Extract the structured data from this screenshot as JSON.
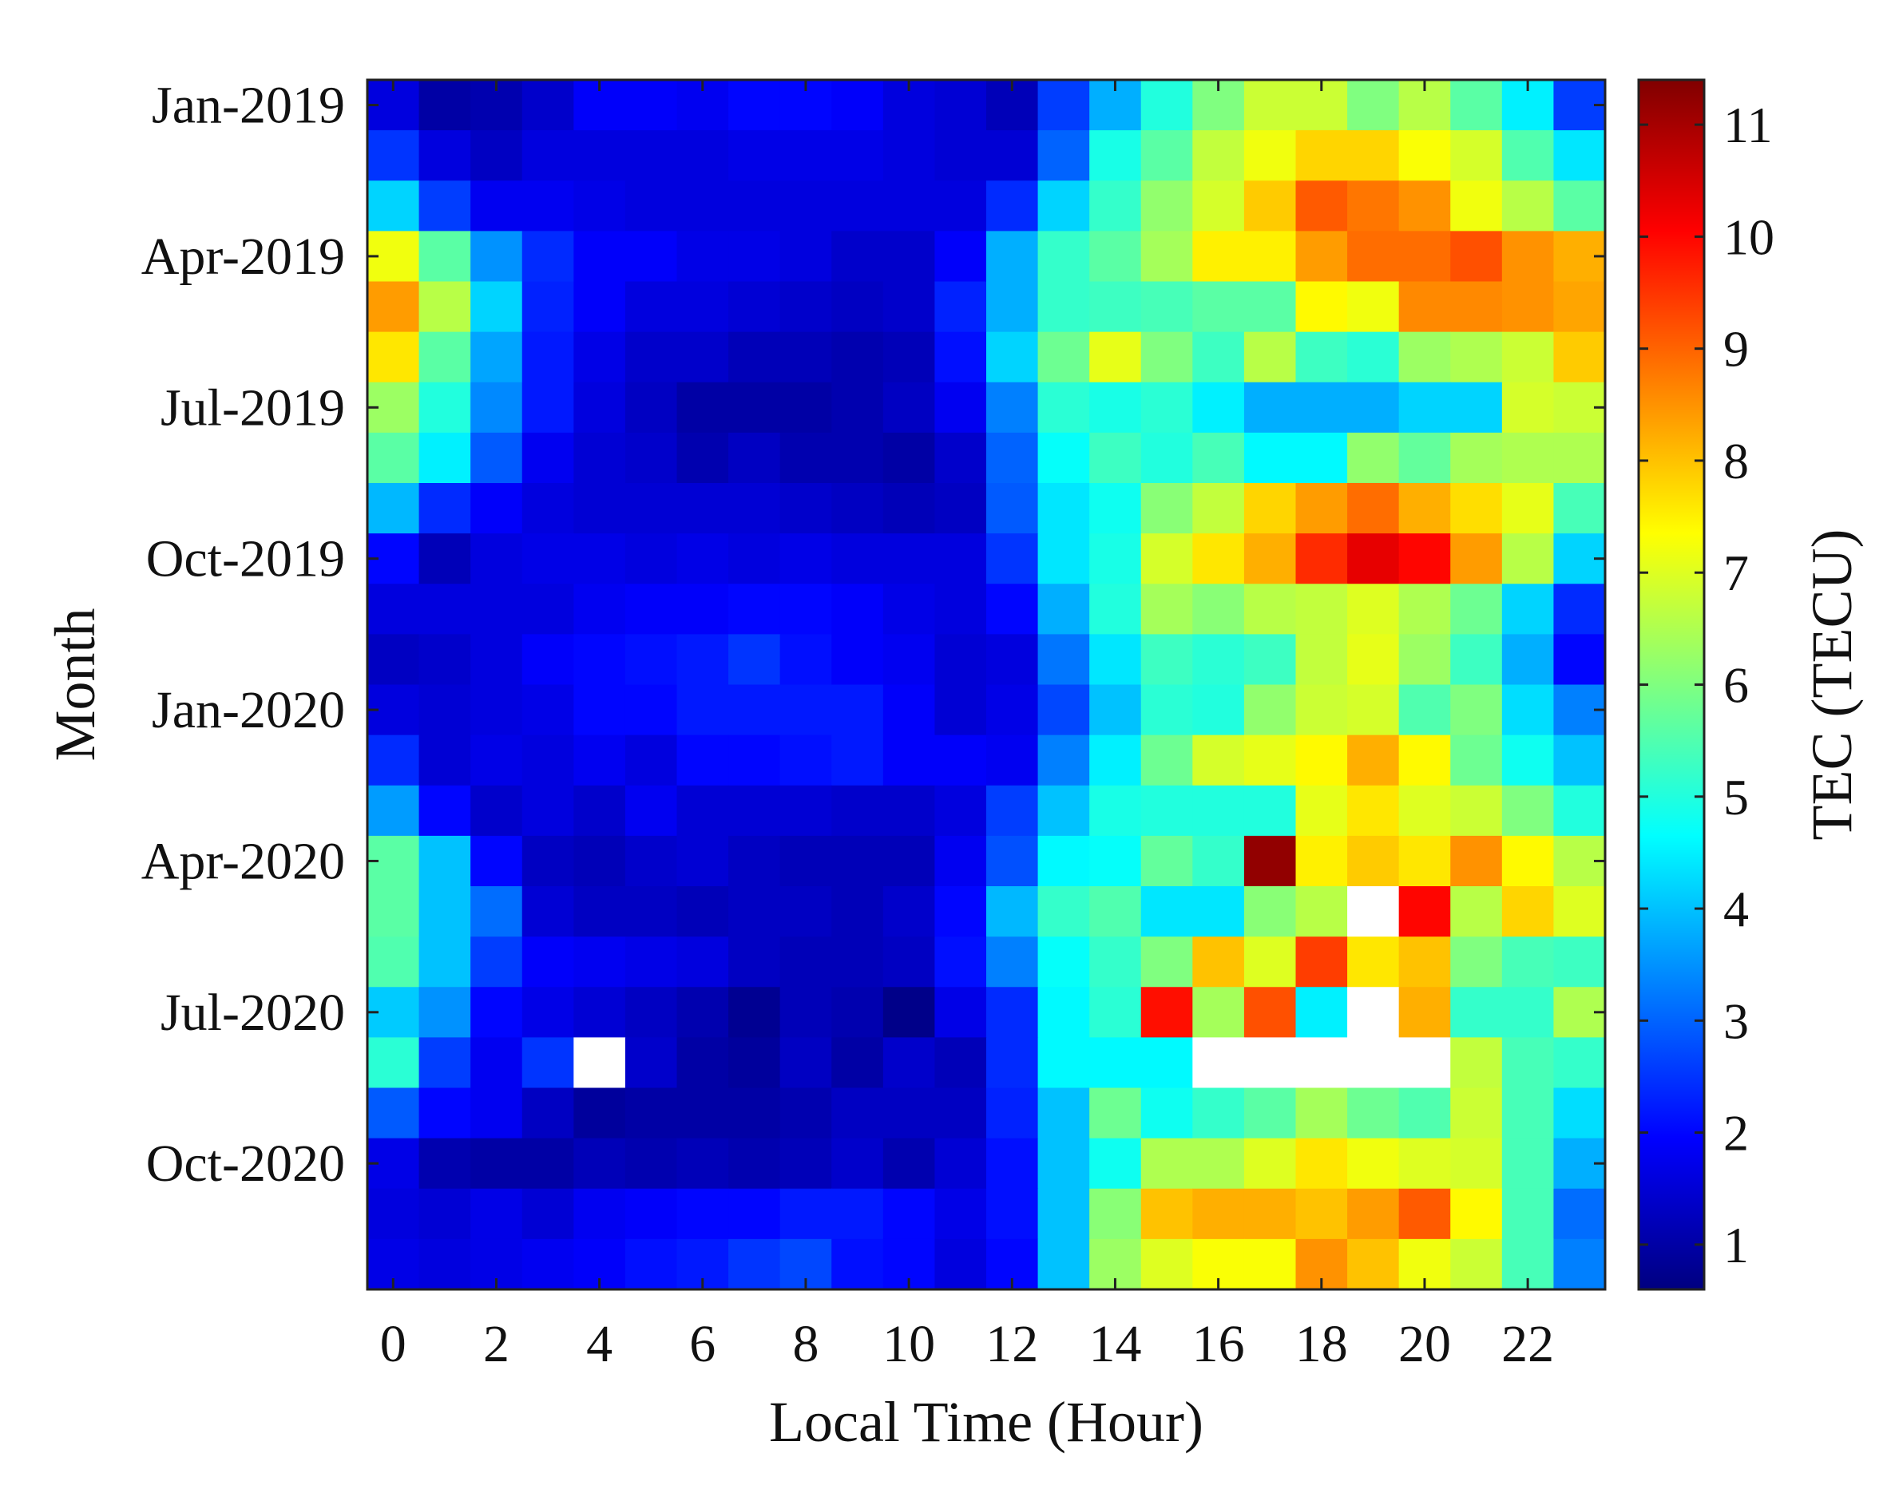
{
  "chart_data": {
    "type": "heatmap",
    "title": "",
    "xlabel": "Local Time (Hour)",
    "ylabel": "Month",
    "colorbar_label": "TEC (TECU)",
    "colormap": "jet",
    "colorbar_range": [
      0.6,
      11.4
    ],
    "colorbar_ticks": [
      "1",
      "2",
      "3",
      "4",
      "5",
      "6",
      "7",
      "8",
      "9",
      "10",
      "11"
    ],
    "x": [
      0,
      1,
      2,
      3,
      4,
      5,
      6,
      7,
      8,
      9,
      10,
      11,
      12,
      13,
      14,
      15,
      16,
      17,
      18,
      19,
      20,
      21,
      22,
      23
    ],
    "x_tick_labels": [
      "0",
      "2",
      "4",
      "6",
      "8",
      "10",
      "12",
      "14",
      "16",
      "18",
      "20",
      "22"
    ],
    "y": [
      "Jan-2019",
      "Feb-2019",
      "Mar-2019",
      "Apr-2019",
      "May-2019",
      "Jun-2019",
      "Jul-2019",
      "Aug-2019",
      "Sep-2019",
      "Oct-2019",
      "Nov-2019",
      "Dec-2019",
      "Jan-2020",
      "Feb-2020",
      "Mar-2020",
      "Apr-2020",
      "May-2020",
      "Jun-2020",
      "Jul-2020",
      "Aug-2020",
      "Sep-2020",
      "Oct-2020",
      "Nov-2020",
      "Dec-2020"
    ],
    "y_tick_labels": [
      "Jan-2019",
      "Apr-2019",
      "Jul-2019",
      "Oct-2019",
      "Jan-2020",
      "Apr-2020",
      "Jul-2020",
      "Oct-2020"
    ],
    "missing_value": null,
    "values": [
      [
        1.6,
        1.0,
        1.1,
        1.4,
        1.9,
        1.9,
        1.8,
        2.0,
        2.0,
        1.9,
        1.6,
        1.5,
        1.2,
        2.6,
        3.8,
        5.0,
        6.0,
        6.8,
        6.8,
        6.0,
        6.6,
        5.6,
        4.5,
        2.6
      ],
      [
        2.5,
        1.6,
        1.3,
        1.6,
        1.6,
        1.6,
        1.6,
        1.7,
        1.7,
        1.7,
        1.6,
        1.5,
        1.5,
        3.0,
        4.9,
        5.6,
        6.7,
        7.2,
        7.8,
        7.8,
        7.3,
        6.9,
        5.5,
        4.4
      ],
      [
        4.2,
        2.6,
        1.8,
        1.8,
        1.7,
        1.6,
        1.6,
        1.6,
        1.6,
        1.6,
        1.6,
        1.6,
        2.4,
        4.2,
        5.2,
        6.2,
        6.9,
        7.9,
        9.1,
        8.8,
        8.5,
        7.2,
        6.6,
        5.6
      ],
      [
        7.2,
        5.6,
        3.5,
        2.4,
        1.9,
        1.9,
        1.7,
        1.7,
        1.6,
        1.4,
        1.4,
        1.9,
        3.8,
        5.2,
        5.6,
        6.4,
        7.5,
        7.5,
        8.4,
        8.9,
        8.9,
        9.2,
        8.5,
        8.2
      ],
      [
        8.4,
        6.6,
        4.2,
        2.3,
        1.9,
        1.6,
        1.6,
        1.5,
        1.4,
        1.3,
        1.4,
        2.3,
        3.8,
        5.2,
        5.3,
        5.4,
        5.6,
        5.6,
        7.4,
        7.2,
        8.6,
        8.6,
        8.5,
        8.3
      ],
      [
        7.6,
        5.6,
        3.7,
        2.2,
        1.7,
        1.4,
        1.4,
        1.2,
        1.2,
        1.1,
        1.2,
        2.1,
        4.2,
        5.8,
        7.1,
        6.0,
        5.3,
        6.6,
        5.3,
        5.1,
        6.3,
        6.5,
        6.8,
        7.9
      ],
      [
        6.3,
        5.0,
        3.4,
        2.2,
        1.6,
        1.3,
        1.0,
        1.0,
        1.0,
        1.1,
        1.3,
        1.8,
        3.3,
        5.1,
        4.9,
        5.1,
        4.5,
        3.8,
        3.8,
        3.8,
        4.2,
        4.2,
        6.9,
        6.8
      ],
      [
        5.6,
        4.5,
        2.9,
        1.8,
        1.5,
        1.4,
        1.1,
        1.3,
        1.1,
        1.1,
        1.0,
        1.4,
        3.0,
        4.7,
        5.3,
        5.0,
        5.4,
        4.6,
        4.6,
        6.2,
        5.7,
        6.4,
        6.5,
        6.5
      ],
      [
        3.9,
        2.4,
        1.9,
        1.6,
        1.5,
        1.5,
        1.5,
        1.5,
        1.4,
        1.3,
        1.2,
        1.3,
        2.9,
        4.4,
        4.8,
        6.1,
        6.7,
        7.8,
        8.4,
        8.9,
        8.2,
        7.7,
        7.1,
        5.4
      ],
      [
        2.0,
        1.2,
        1.6,
        1.7,
        1.7,
        1.6,
        1.7,
        1.6,
        1.7,
        1.6,
        1.6,
        1.6,
        2.5,
        4.4,
        4.9,
        6.9,
        7.6,
        8.2,
        9.6,
        10.3,
        10.0,
        8.4,
        6.6,
        4.2
      ],
      [
        1.6,
        1.6,
        1.6,
        1.6,
        1.8,
        1.9,
        1.9,
        2.0,
        2.0,
        1.9,
        1.7,
        1.6,
        2.0,
        3.8,
        5.0,
        6.4,
        6.1,
        6.6,
        6.7,
        7.0,
        6.5,
        5.8,
        4.2,
        2.4
      ],
      [
        1.3,
        1.4,
        1.6,
        1.9,
        2.0,
        2.1,
        2.2,
        2.5,
        2.1,
        1.9,
        1.8,
        1.5,
        1.6,
        3.2,
        4.4,
        5.3,
        5.1,
        5.3,
        6.7,
        7.1,
        6.3,
        5.3,
        3.8,
        2.0
      ],
      [
        1.6,
        1.5,
        1.6,
        1.7,
        2.0,
        2.0,
        2.2,
        2.2,
        2.2,
        2.2,
        1.9,
        1.5,
        1.7,
        2.7,
        4.0,
        5.1,
        5.0,
        6.2,
        6.8,
        6.9,
        5.5,
        6.0,
        4.3,
        3.3
      ],
      [
        2.4,
        1.5,
        1.7,
        1.6,
        1.8,
        1.6,
        2.0,
        2.0,
        2.1,
        2.2,
        1.9,
        1.9,
        1.8,
        3.3,
        4.5,
        5.8,
        6.9,
        7.1,
        7.4,
        8.2,
        7.4,
        5.8,
        4.8,
        4.0
      ],
      [
        3.6,
        2.0,
        1.4,
        1.6,
        1.4,
        1.8,
        1.5,
        1.5,
        1.5,
        1.4,
        1.4,
        1.6,
        2.6,
        4.0,
        4.9,
        5.0,
        5.0,
        5.0,
        7.1,
        7.6,
        7.0,
        6.8,
        6.0,
        5.0
      ],
      [
        5.6,
        4.0,
        2.0,
        1.3,
        1.2,
        1.4,
        1.5,
        1.3,
        1.2,
        1.2,
        1.2,
        1.8,
        2.8,
        4.6,
        4.7,
        5.7,
        5.2,
        11.2,
        7.5,
        7.9,
        7.6,
        8.5,
        7.4,
        6.6
      ],
      [
        5.6,
        4.0,
        3.1,
        1.5,
        1.3,
        1.3,
        1.2,
        1.3,
        1.3,
        1.2,
        1.4,
        2.0,
        3.9,
        5.2,
        5.5,
        4.4,
        4.4,
        6.1,
        6.6,
        null,
        10.0,
        6.6,
        7.8,
        7.0
      ],
      [
        5.5,
        4.0,
        2.6,
        1.9,
        1.8,
        1.7,
        1.6,
        1.3,
        1.2,
        1.2,
        1.3,
        2.1,
        3.3,
        4.7,
        5.2,
        6.0,
        8.0,
        7.0,
        9.4,
        7.6,
        8.0,
        6.0,
        5.4,
        5.3
      ],
      [
        4.1,
        3.5,
        2.0,
        1.7,
        1.5,
        1.3,
        1.1,
        0.8,
        1.2,
        1.1,
        0.7,
        1.7,
        2.4,
        4.6,
        5.1,
        9.9,
        6.4,
        9.2,
        4.5,
        null,
        8.2,
        5.2,
        5.2,
        6.5
      ],
      [
        5.1,
        2.6,
        1.8,
        2.5,
        null,
        1.4,
        1.0,
        0.9,
        1.3,
        1.0,
        1.4,
        1.2,
        2.4,
        4.6,
        4.6,
        4.6,
        null,
        null,
        null,
        null,
        null,
        6.7,
        5.4,
        5.2
      ],
      [
        2.9,
        2.0,
        1.8,
        1.3,
        0.9,
        1.0,
        1.0,
        1.0,
        1.1,
        1.3,
        1.3,
        1.3,
        2.3,
        4.0,
        5.8,
        4.8,
        5.2,
        5.6,
        6.4,
        5.8,
        5.5,
        6.8,
        5.4,
        4.3
      ],
      [
        1.7,
        1.1,
        1.0,
        1.0,
        1.2,
        1.1,
        1.2,
        1.1,
        1.2,
        1.4,
        1.1,
        1.5,
        2.1,
        4.0,
        4.8,
        6.5,
        6.5,
        7.0,
        7.6,
        7.2,
        7.0,
        6.9,
        5.4,
        3.8
      ],
      [
        1.6,
        1.5,
        1.7,
        1.5,
        1.8,
        1.9,
        2.0,
        2.0,
        2.2,
        2.2,
        2.0,
        1.7,
        2.1,
        4.0,
        6.1,
        8.0,
        8.2,
        8.2,
        8.0,
        8.4,
        9.1,
        7.4,
        5.4,
        3.1
      ],
      [
        1.7,
        1.6,
        1.7,
        1.8,
        1.9,
        2.1,
        2.2,
        2.5,
        2.7,
        2.1,
        2.0,
        1.6,
        2.0,
        4.0,
        6.3,
        7.0,
        7.3,
        7.3,
        8.5,
        8.0,
        7.2,
        6.8,
        5.4,
        3.3
      ]
    ]
  }
}
